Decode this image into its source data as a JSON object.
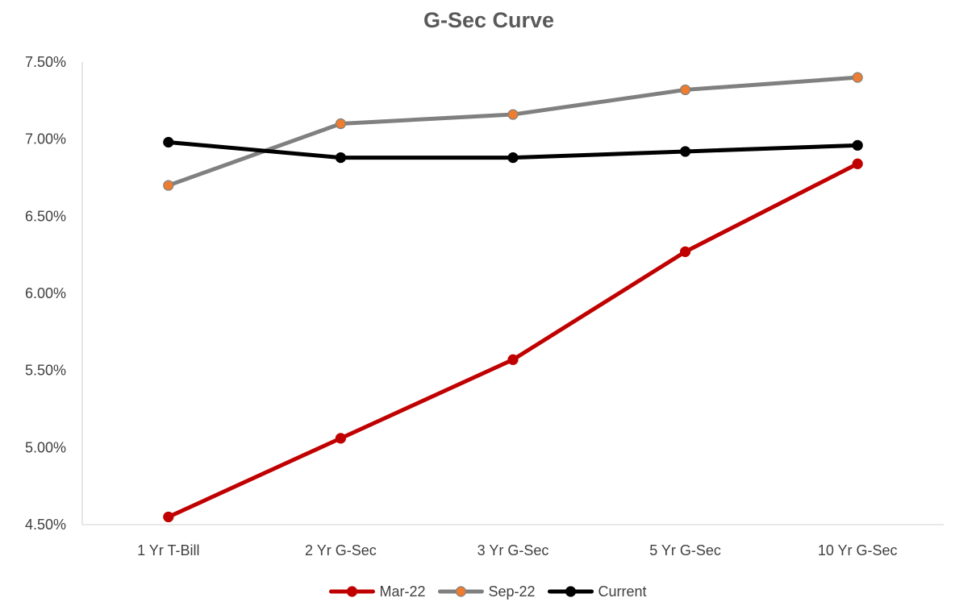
{
  "chart_data": {
    "type": "line",
    "title": "G-Sec Curve",
    "xlabel": "",
    "ylabel": "",
    "categories": [
      "1 Yr T-Bill",
      "2 Yr G-Sec",
      "3 Yr G-Sec",
      "5 Yr G-Sec",
      "10 Yr G-Sec"
    ],
    "ylim": [
      4.5,
      7.5
    ],
    "yticks": [
      4.5,
      5.0,
      5.5,
      6.0,
      6.5,
      7.0,
      7.5
    ],
    "ytick_labels": [
      "4.50%",
      "5.00%",
      "5.50%",
      "6.00%",
      "6.50%",
      "7.00%",
      "7.50%"
    ],
    "grid": false,
    "legend_position": "bottom",
    "series": [
      {
        "name": "Mar-22",
        "values": [
          4.55,
          5.06,
          5.57,
          6.27,
          6.84
        ],
        "line_color": "#c00000",
        "marker_color": "#c00000"
      },
      {
        "name": "Sep-22",
        "values": [
          6.7,
          7.1,
          7.16,
          7.32,
          7.4
        ],
        "line_color": "#808080",
        "marker_color": "#ed7d31"
      },
      {
        "name": "Current",
        "values": [
          6.98,
          6.88,
          6.88,
          6.92,
          6.96
        ],
        "line_color": "#000000",
        "marker_color": "#000000"
      }
    ]
  }
}
